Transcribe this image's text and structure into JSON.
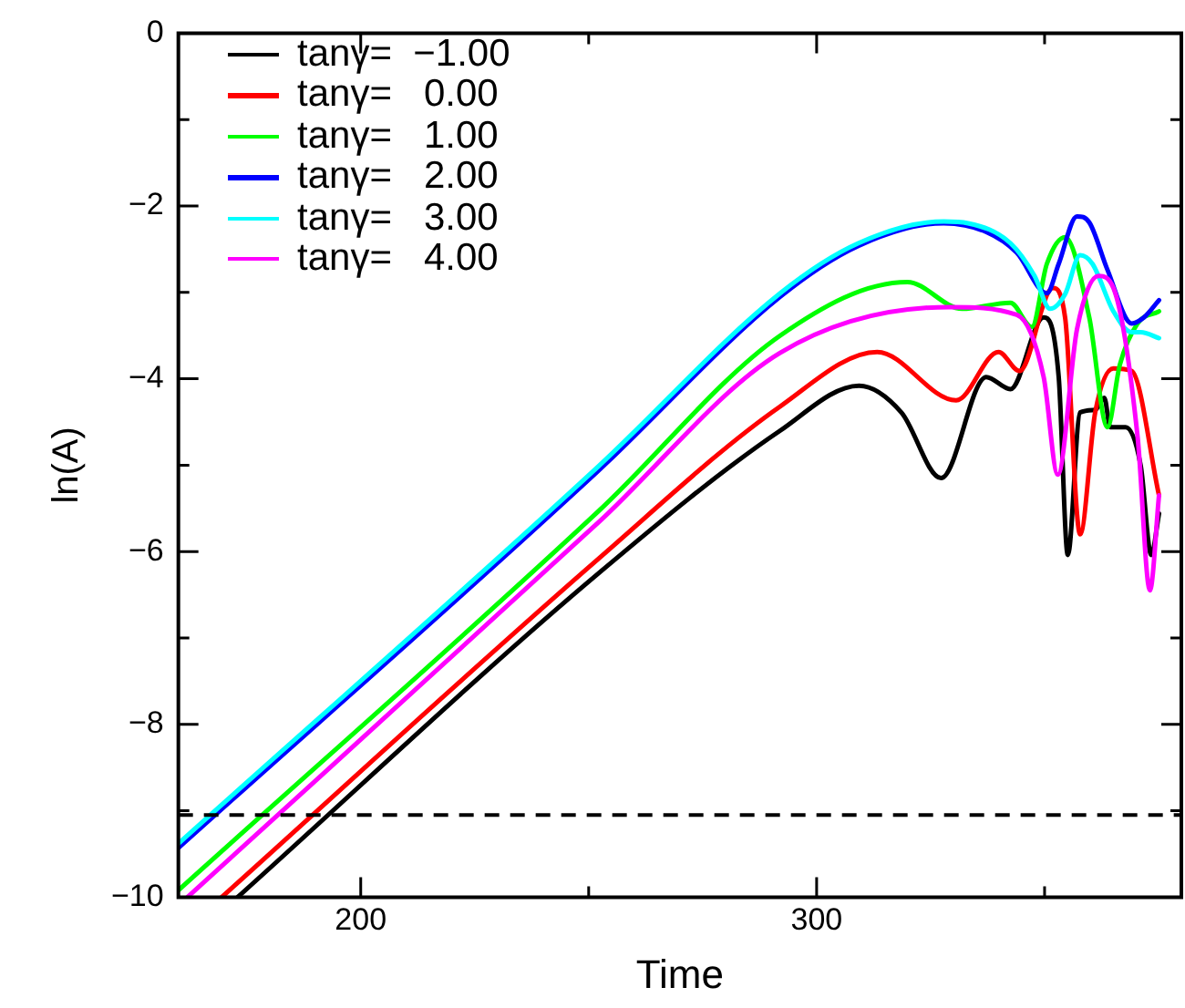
{
  "chart_data": {
    "type": "line",
    "xlabel": "Time",
    "ylabel": "ln(A)",
    "xlim": [
      160,
      380
    ],
    "xticks": [
      200,
      {
        "value": 250,
        "label": null
      },
      300,
      {
        "value": 350,
        "label": null
      }
    ],
    "ylim": [
      -10,
      0
    ],
    "yticks": [
      -10,
      {
        "value": -9,
        "label": null
      },
      -8,
      {
        "value": -7,
        "label": null
      },
      -6,
      {
        "value": -5,
        "label": null
      },
      -4,
      {
        "value": -3,
        "label": null
      },
      -2,
      {
        "value": -1,
        "label": null
      },
      0
    ],
    "legend": "top left",
    "grid": false,
    "marker": "none",
    "line_style": "solid",
    "ref_lines": [
      {
        "axis": "y",
        "value": -9.05,
        "color": "#000000",
        "line_style": "dashed"
      }
    ],
    "series": [
      {
        "name": "tanγ=  −1.00",
        "color": "#000000",
        "x": [
          173,
          252.2,
          292,
          309.3,
          318.6,
          327.3,
          337.2,
          342.5,
          349.8,
          353.1,
          355.1,
          357.8,
          361.1,
          363.1,
          364.4,
          367.8,
          371.1,
          373.4,
          375.1
        ],
        "values": [
          -10,
          -6.25,
          -4.6,
          -4.08,
          -4.39,
          -5.15,
          -3.98,
          -4.12,
          -3.29,
          -3.98,
          -6.04,
          -4.39,
          -4.36,
          -4.22,
          -4.56,
          -4.56,
          -5.01,
          -6.04,
          -5.56
        ]
      },
      {
        "name": "tanγ=   0.00",
        "color": "#ff0000",
        "x": [
          169.5,
          252.2,
          292,
          313.3,
          330.6,
          339.9,
          344.5,
          351.8,
          354.5,
          357.8,
          361.1,
          365.1,
          369.1,
          375.1
        ],
        "values": [
          -10,
          -6.08,
          -4.32,
          -3.69,
          -4.25,
          -3.69,
          -3.91,
          -2.95,
          -3.29,
          -5.8,
          -4.39,
          -3.88,
          -3.91,
          -5.35
        ]
      },
      {
        "name": "tanγ=   1.00",
        "color": "#00ff00",
        "x": [
          160,
          252.2,
          292,
          319.9,
          331.9,
          342.5,
          347.2,
          350.5,
          354.5,
          359.8,
          363.8,
          366.5,
          370.4,
          375.1
        ],
        "values": [
          -9.92,
          -5.53,
          -3.5,
          -2.88,
          -3.19,
          -3.12,
          -3.4,
          -2.67,
          -2.36,
          -3.29,
          -4.56,
          -3.84,
          -3.36,
          -3.22
        ]
      },
      {
        "name": "tanγ=   2.00",
        "color": "#0000ff",
        "x": [
          160,
          252.2,
          292,
          309.2,
          327.9,
          337.2,
          343.9,
          350.5,
          353.1,
          357.1,
          359.8,
          363.8,
          369.1,
          371.8,
          375.1
        ],
        "values": [
          -9.43,
          -5.06,
          -3.05,
          -2.46,
          -2.2,
          -2.3,
          -2.54,
          -3.01,
          -2.67,
          -2.12,
          -2.19,
          -2.74,
          -3.36,
          -3.29,
          -3.09
        ]
      },
      {
        "name": "tanγ=   3.00",
        "color": "#00ffff",
        "x": [
          160,
          252.2,
          292,
          309.2,
          327.9,
          333.2,
          342.5,
          347.8,
          351.2,
          354.5,
          357.8,
          360.5,
          365.1,
          369.1,
          371.1,
          375.1
        ],
        "values": [
          -9.38,
          -5.01,
          -3.01,
          -2.43,
          -2.18,
          -2.2,
          -2.43,
          -2.81,
          -3.19,
          -3.02,
          -2.57,
          -2.67,
          -3.22,
          -3.46,
          -3.46,
          -3.53
        ]
      },
      {
        "name": "tanγ=   4.00",
        "color": "#ff00ff",
        "x": [
          162,
          252.2,
          292,
          329.2,
          343.9,
          349.8,
          352.9,
          357.1,
          361.8,
          365.1,
          370.4,
          373.1,
          375.1
        ],
        "values": [
          -10,
          -5.66,
          -3.7,
          -3.17,
          -3.26,
          -3.98,
          -5.11,
          -3.43,
          -2.81,
          -2.95,
          -4.67,
          -6.45,
          -5.35
        ]
      }
    ]
  }
}
